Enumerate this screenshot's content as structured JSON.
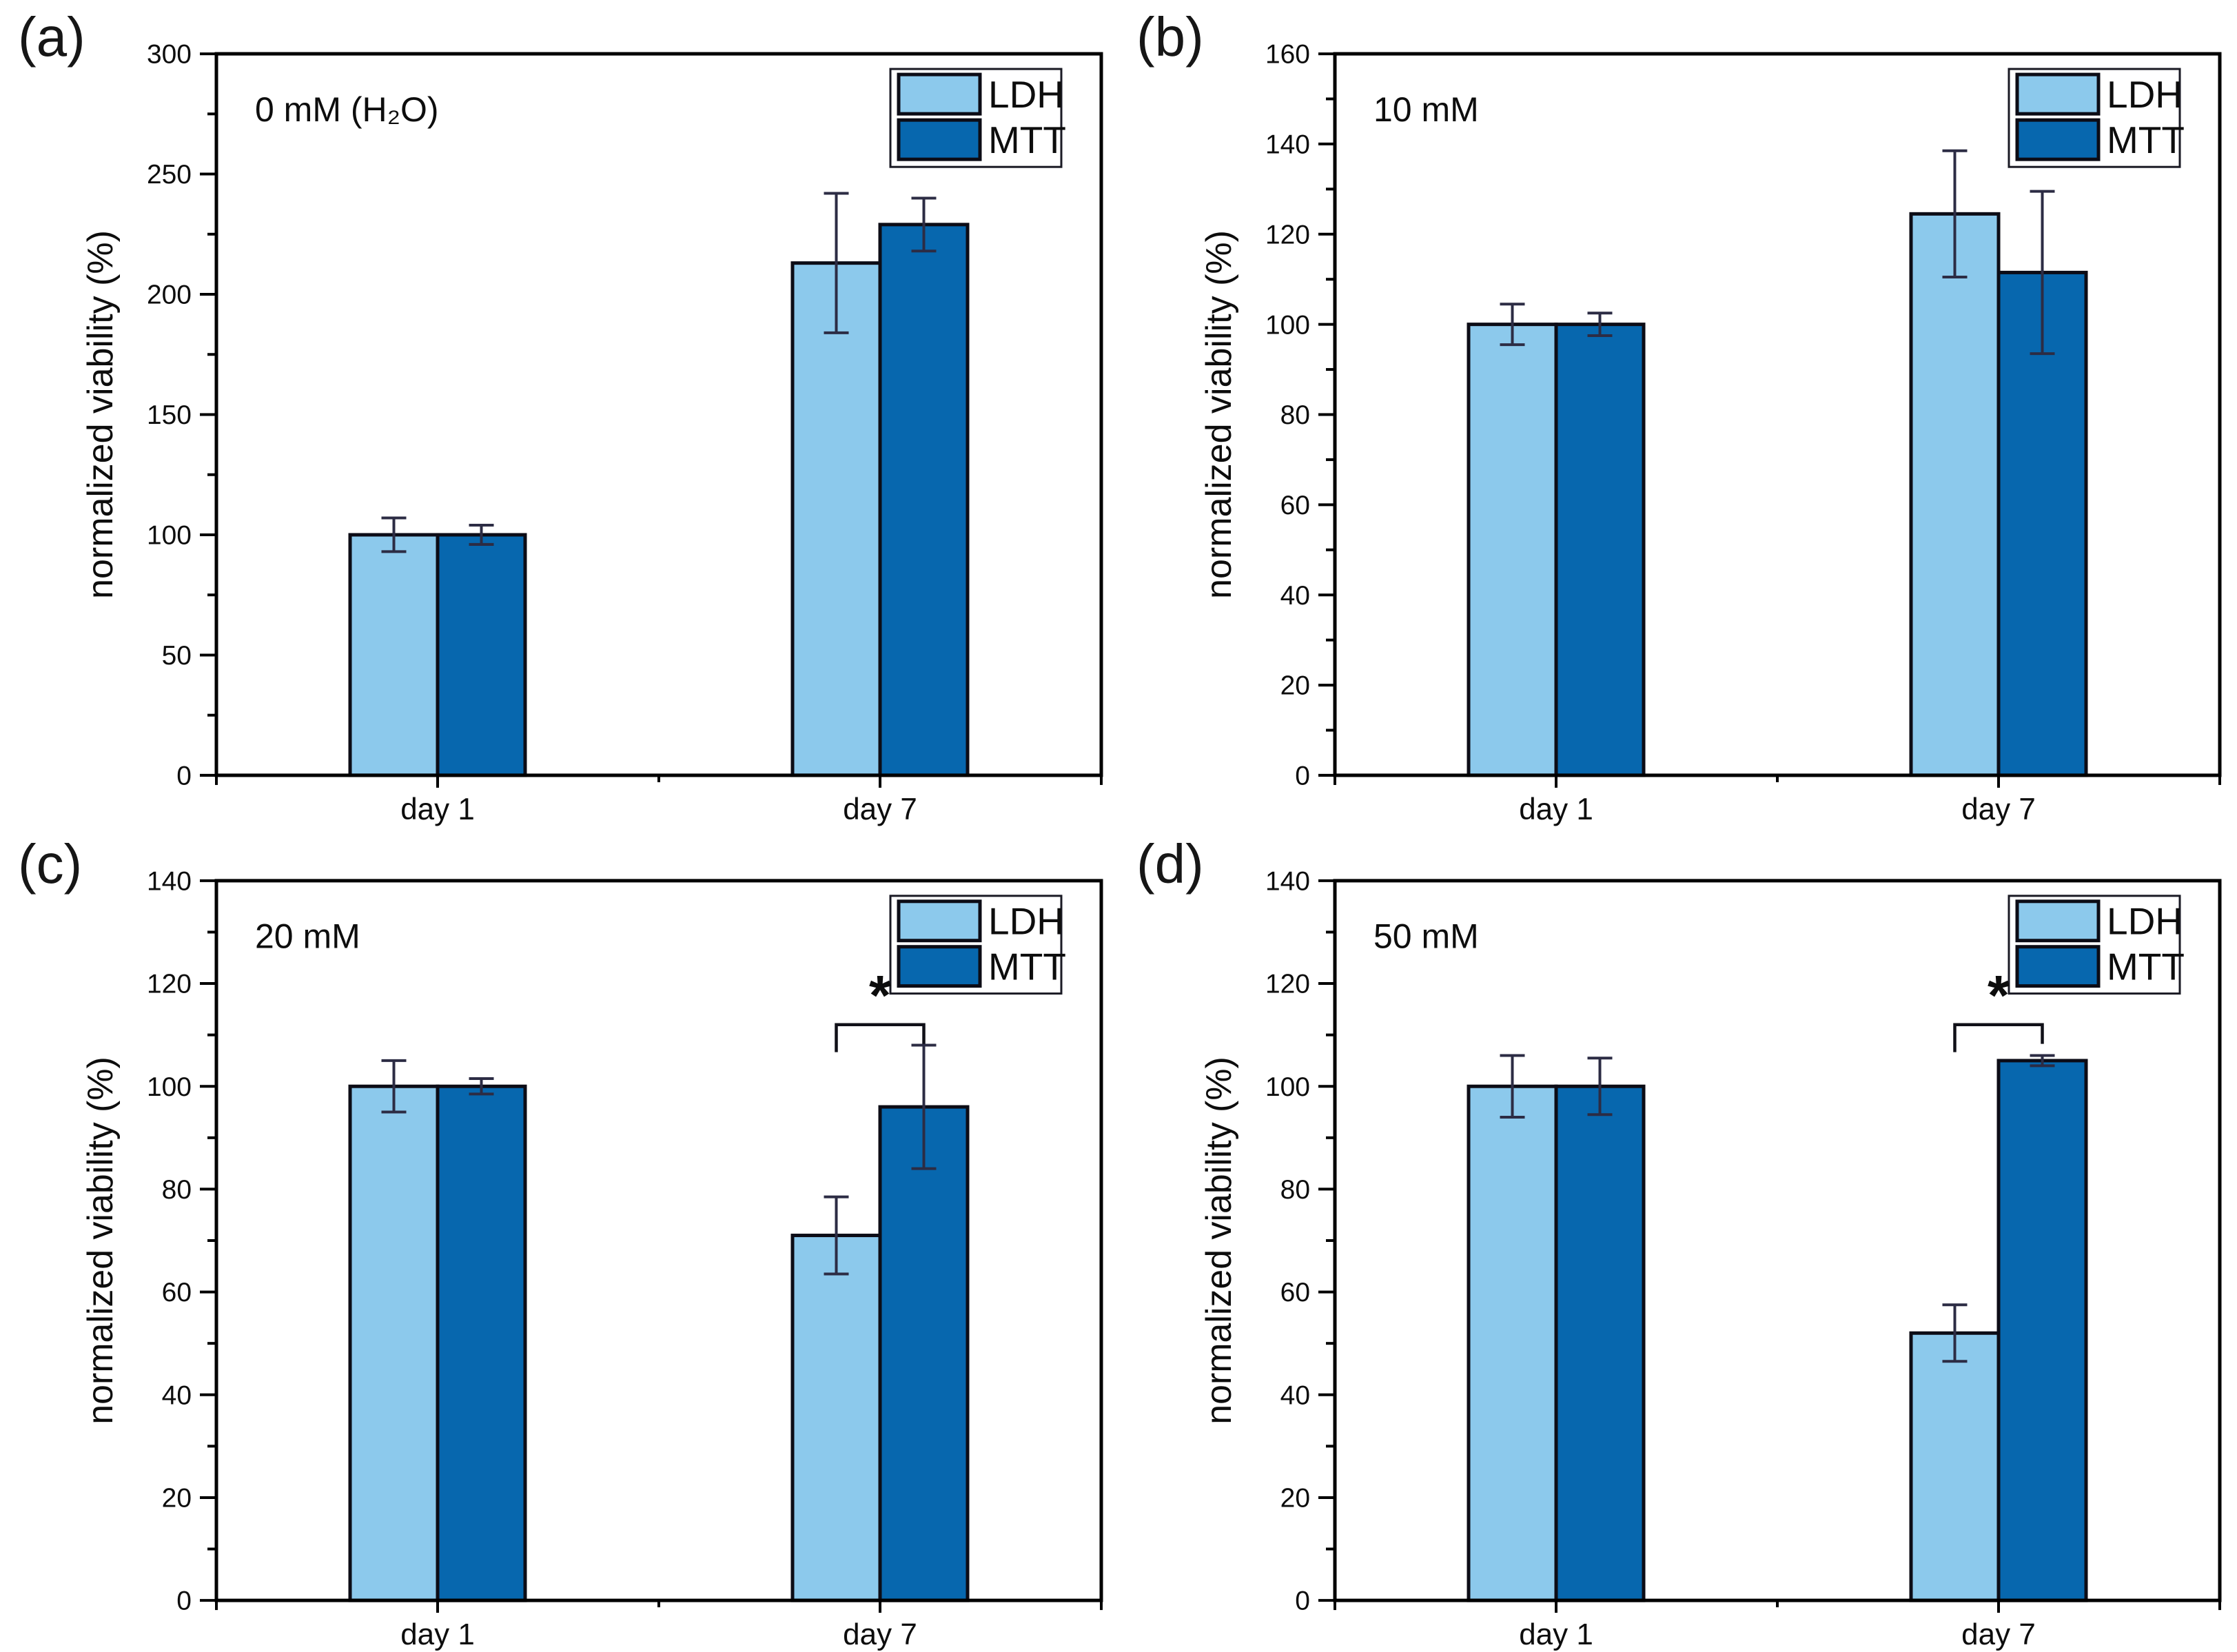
{
  "figure": {
    "ylabel": "normalized viability (%)",
    "categories": [
      "day 1",
      "day 7"
    ],
    "legend": {
      "items": [
        {
          "label": "LDH",
          "color": "#8CC9EC"
        },
        {
          "label": "MTT",
          "color": "#0767AE"
        }
      ]
    },
    "colors": {
      "frame": "#000000",
      "bar_edge": "#0c0c16",
      "error_bar": "#2c2c44",
      "bracket": "#101018",
      "text": "#0d0d0d",
      "background": "#ffffff"
    }
  },
  "chart_data": [
    {
      "type": "bar",
      "panel_label": "(a)",
      "annotation": "0 mM (H₂O)",
      "xlabel": "",
      "ylabel": "normalized viability (%)",
      "ylim": [
        0,
        300
      ],
      "ytick_step": 50,
      "yminor_step": 25,
      "categories": [
        "day 1",
        "day 7"
      ],
      "series": [
        {
          "name": "LDH",
          "values": [
            100,
            213
          ],
          "errors": [
            7,
            29
          ]
        },
        {
          "name": "MTT",
          "values": [
            100,
            229
          ],
          "errors": [
            4,
            11
          ]
        }
      ],
      "significance": null,
      "legend_position": "top-right",
      "grid": false
    },
    {
      "type": "bar",
      "panel_label": "(b)",
      "annotation": "10 mM",
      "xlabel": "",
      "ylabel": "normalized viability (%)",
      "ylim": [
        0,
        160
      ],
      "ytick_step": 20,
      "yminor_step": 10,
      "categories": [
        "day 1",
        "day 7"
      ],
      "series": [
        {
          "name": "LDH",
          "values": [
            100,
            124.5
          ],
          "errors": [
            4.5,
            14
          ]
        },
        {
          "name": "MTT",
          "values": [
            100,
            111.5
          ],
          "errors": [
            2.5,
            18
          ]
        }
      ],
      "significance": null,
      "legend_position": "top-right",
      "grid": false
    },
    {
      "type": "bar",
      "panel_label": "(c)",
      "annotation": "20 mM",
      "xlabel": "",
      "ylabel": "normalized viability (%)",
      "ylim": [
        0,
        140
      ],
      "ytick_step": 20,
      "yminor_step": 10,
      "categories": [
        "day 1",
        "day 7"
      ],
      "series": [
        {
          "name": "LDH",
          "values": [
            100,
            71
          ],
          "errors": [
            5,
            7.5
          ]
        },
        {
          "name": "MTT",
          "values": [
            100,
            96
          ],
          "errors": [
            1.5,
            12
          ]
        }
      ],
      "significance": {
        "category_index": 1,
        "label": "*",
        "bracket_y": 112
      },
      "legend_position": "top-right",
      "grid": false
    },
    {
      "type": "bar",
      "panel_label": "(d)",
      "annotation": "50 mM",
      "xlabel": "",
      "ylabel": "normalized viability (%)",
      "ylim": [
        0,
        140
      ],
      "ytick_step": 20,
      "yminor_step": 10,
      "categories": [
        "day 1",
        "day 7"
      ],
      "series": [
        {
          "name": "LDH",
          "values": [
            100,
            52
          ],
          "errors": [
            6,
            5.5
          ]
        },
        {
          "name": "MTT",
          "values": [
            100,
            105
          ],
          "errors": [
            5.5,
            1
          ]
        }
      ],
      "significance": {
        "category_index": 1,
        "label": "*",
        "bracket_y": 112
      },
      "legend_position": "top-right",
      "grid": false
    }
  ]
}
